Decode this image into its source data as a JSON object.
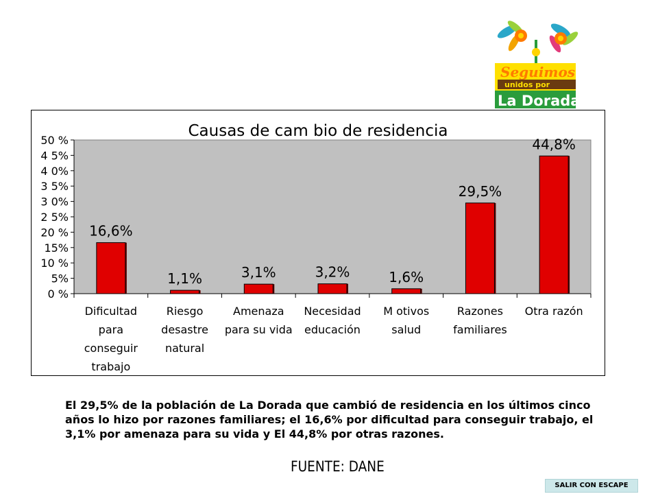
{
  "logo": {
    "line1": "Seguimos",
    "line2": "unidos por",
    "line3": "La Dorada"
  },
  "chart_data": {
    "type": "bar",
    "title": "Causas de cam bio de residencia",
    "categories": [
      [
        "Dificultad",
        "para",
        "conseguir",
        "trabajo"
      ],
      [
        "Riesgo",
        "desastre",
        "natural"
      ],
      [
        "Amenaza",
        "para su vida"
      ],
      [
        "Necesidad",
        "educación"
      ],
      [
        "M otivos",
        "salud"
      ],
      [
        "Razones",
        "familiares"
      ],
      [
        "Otra razón"
      ]
    ],
    "values": [
      16.6,
      1.1,
      3.1,
      3.2,
      1.6,
      29.5,
      44.8
    ],
    "data_labels": [
      "16,6%",
      "1,1%",
      "3,1%",
      "3,2%",
      "1,6%",
      "29,5%",
      "44,8%"
    ],
    "y_ticks": [
      0,
      5,
      10,
      15,
      20,
      25,
      30,
      35,
      40,
      45,
      50
    ],
    "y_tick_labels": [
      "0 %",
      "5%",
      "10 %",
      "15%",
      "20 %",
      "2 5%",
      "3 0%",
      "3 5%",
      "4 0%",
      "4 5%",
      "50 %"
    ],
    "ylim": [
      0,
      50
    ],
    "colors": {
      "bar": "#e00000",
      "plot_bg": "#c0c0c0"
    }
  },
  "caption": "El 29,5% de la población de La Dorada que cambió de residencia en los últimos cinco años lo hizo por razones familiares; el 16,6% por dificultad para conseguir trabajo,  el 3,1% por amenaza para su vida y El 44,8% por otras razones.",
  "source": "FUENTE: DANE",
  "escape_button": "SALIR CON ESCAPE"
}
